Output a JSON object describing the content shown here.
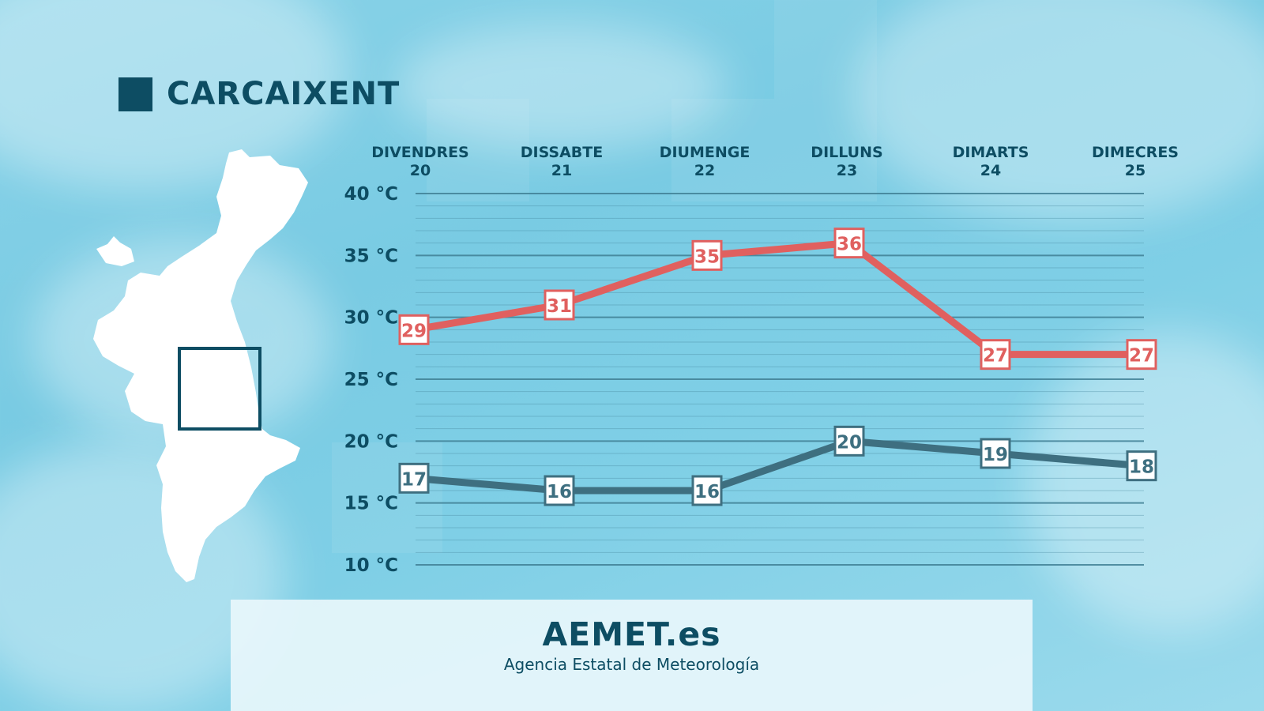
{
  "header": {
    "location": "CARCAIXENT"
  },
  "footer": {
    "brand": "AEMET.es",
    "subtitle": "Agencia Estatal de Meteorología"
  },
  "colors": {
    "max_series": "#e0605f",
    "min_series": "#3e6f80",
    "text": "#0d4d63",
    "gridline": "#3f7f94"
  },
  "chart_data": {
    "type": "line",
    "categories": [
      {
        "day": "DIVENDRES",
        "date": "20"
      },
      {
        "day": "DISSABTE",
        "date": "21"
      },
      {
        "day": "DIUMENGE",
        "date": "22"
      },
      {
        "day": "DILLUNS",
        "date": "23"
      },
      {
        "day": "DIMARTS",
        "date": "24"
      },
      {
        "day": "DIMECRES",
        "date": "25"
      }
    ],
    "y_ticks": [
      "10 °C",
      "15 °C",
      "20 °C",
      "25 °C",
      "30 °C",
      "35 °C",
      "40 °C"
    ],
    "ylim": [
      10,
      40
    ],
    "grid": true,
    "series": [
      {
        "key": "max",
        "values": [
          29,
          31,
          35,
          36,
          27,
          27
        ]
      },
      {
        "key": "min",
        "values": [
          17,
          16,
          16,
          20,
          19,
          18
        ]
      }
    ]
  }
}
